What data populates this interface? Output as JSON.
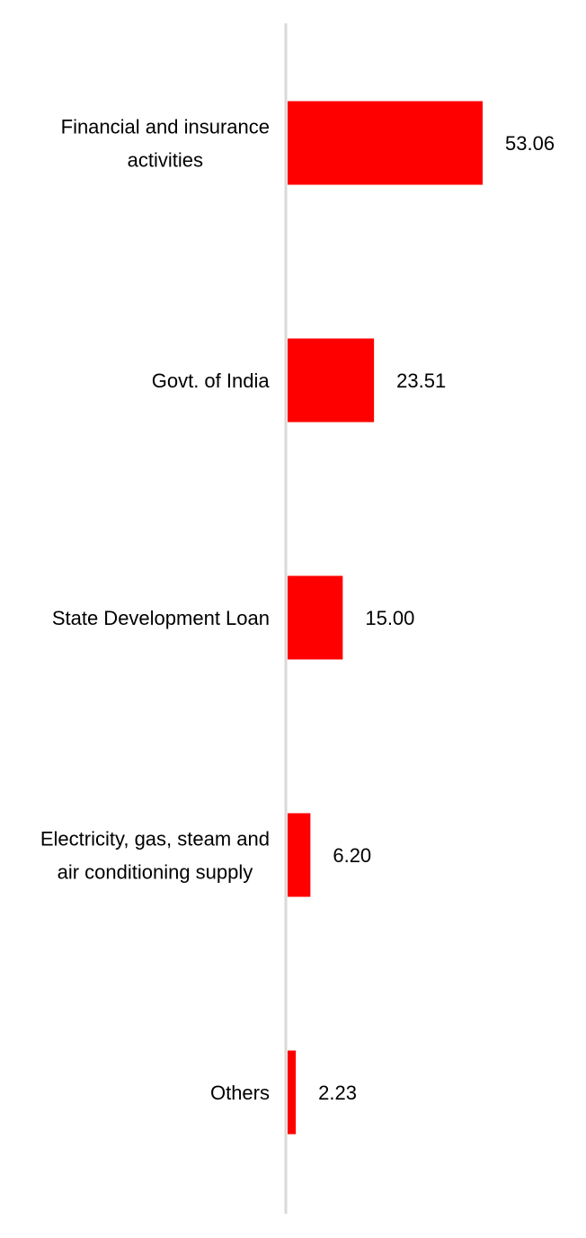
{
  "chart_data": {
    "type": "bar",
    "orientation": "horizontal",
    "categories": [
      [
        "Financial and insurance",
        "activities"
      ],
      [
        "Govt. of India"
      ],
      [
        "State Development Loan"
      ],
      [
        "Electricity, gas, steam and",
        "air conditioning supply"
      ],
      [
        "Others"
      ]
    ],
    "values": [
      53.06,
      23.51,
      15.0,
      6.2,
      2.23
    ],
    "value_labels": [
      "53.06",
      "23.51",
      "15.00",
      "6.20",
      "2.23"
    ],
    "bar_color": "#ff0000",
    "axis_color": "#d9d9d9",
    "grid": false,
    "legend": "none",
    "xlim": [
      0,
      60
    ]
  }
}
